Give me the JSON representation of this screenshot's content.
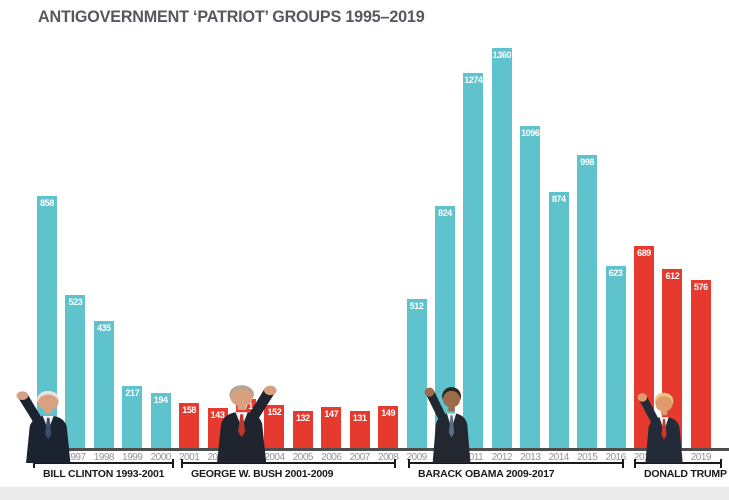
{
  "title": "ANTIGOVERNMENT ‘PATRIOT’ GROUPS 1995–2019",
  "colors": {
    "democrat_bar": "#5ec3cd",
    "republican_bar": "#e73a2e",
    "value_label": "#ffffff",
    "year_label": "#909396",
    "axis": "#4c4d4f",
    "bracket": "#1b1a18",
    "title_text": "#55585d",
    "footer_band": "#ebebeb"
  },
  "chart_data": {
    "type": "bar",
    "title": "ANTIGOVERNMENT ‘PATRIOT’ GROUPS 1995–2019",
    "xlabel": "",
    "ylabel": "",
    "ylim": [
      0,
      1360
    ],
    "grid": false,
    "legend": false,
    "categories": [
      "1996",
      "1997",
      "1998",
      "1999",
      "2000",
      "2001",
      "2002",
      "2003",
      "2004",
      "2005",
      "2006",
      "2007",
      "2008",
      "2009",
      "2010",
      "2011",
      "2012",
      "2013",
      "2014",
      "2015",
      "2016",
      "2017",
      "2018",
      "2019"
    ],
    "values": [
      858,
      523,
      435,
      217,
      194,
      158,
      143,
      171,
      152,
      132,
      147,
      131,
      149,
      512,
      824,
      1274,
      1360,
      1096,
      874,
      998,
      623,
      689,
      612,
      576
    ],
    "bar_color_keys": [
      "democrat_bar",
      "democrat_bar",
      "democrat_bar",
      "democrat_bar",
      "democrat_bar",
      "republican_bar",
      "republican_bar",
      "republican_bar",
      "republican_bar",
      "republican_bar",
      "republican_bar",
      "republican_bar",
      "republican_bar",
      "democrat_bar",
      "democrat_bar",
      "democrat_bar",
      "democrat_bar",
      "democrat_bar",
      "democrat_bar",
      "democrat_bar",
      "democrat_bar",
      "republican_bar",
      "republican_bar",
      "republican_bar"
    ],
    "annotations": [
      "BILL CLINTON 1993-2001",
      "GEORGE W. BUSH 2001-2009",
      "BARACK OBAMA 2009-2017",
      "DONALD TRUMP 2017-"
    ]
  },
  "presidents": [
    {
      "label": "BILL CLINTON 1993-2001",
      "photo": "bill-clinton-photo"
    },
    {
      "label": "GEORGE W. BUSH 2001-2009",
      "photo": "george-w-bush-photo"
    },
    {
      "label": "BARACK OBAMA 2009-2017",
      "photo": "barack-obama-photo"
    },
    {
      "label": "DONALD TRUMP 2017-",
      "photo": "donald-trump-photo"
    }
  ]
}
